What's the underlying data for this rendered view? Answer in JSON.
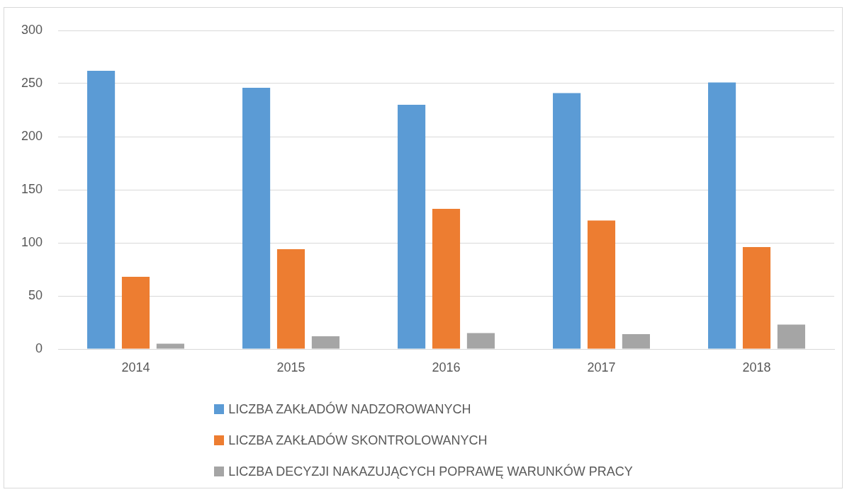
{
  "chart_data": {
    "type": "bar",
    "categories": [
      "2014",
      "2015",
      "2016",
      "2017",
      "2018"
    ],
    "series": [
      {
        "name": "LICZBA ZAKŁADÓW NADZOROWANYCH",
        "color": "#5b9bd5",
        "values": [
          262,
          246,
          230,
          241,
          251
        ]
      },
      {
        "name": "LICZBA ZAKŁADÓW SKONTROLOWANYCH",
        "color": "#ed7d31",
        "values": [
          68,
          94,
          132,
          121,
          96
        ]
      },
      {
        "name": "LICZBA DECYZJI NAKAZUJĄCYCH POPRAWĘ WARUNKÓW PRACY",
        "color": "#a5a5a5",
        "values": [
          5,
          12,
          15,
          14,
          23
        ]
      }
    ],
    "ylim": [
      0,
      300
    ],
    "yticks": [
      0,
      50,
      100,
      150,
      200,
      250,
      300
    ],
    "grid": "y",
    "legend": "bottom"
  }
}
